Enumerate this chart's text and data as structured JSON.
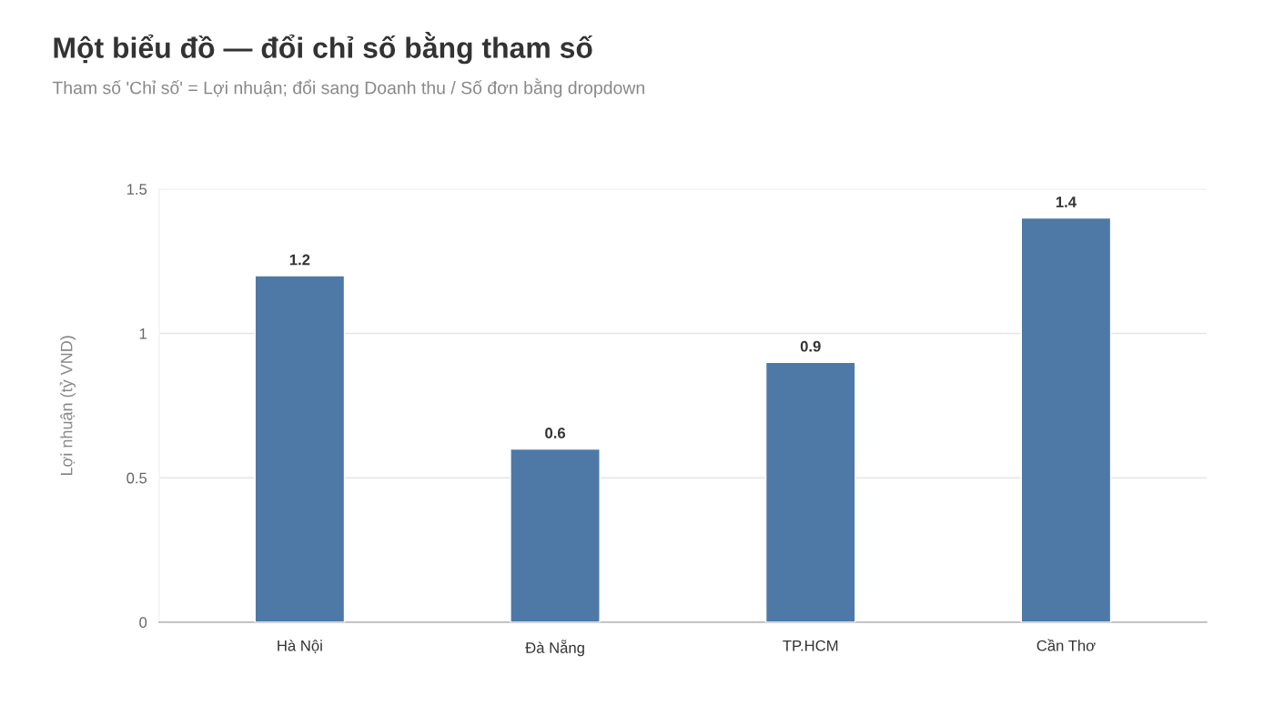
{
  "chart_data": {
    "type": "bar",
    "title": "Một biểu đồ — đổi chỉ số bằng tham số",
    "subtitle": "Tham số 'Chỉ số' = Lợi nhuận; đổi sang Doanh thu / Số đơn bằng dropdown",
    "ylabel": "Lợi nhuận (tỷ VND)",
    "categories": [
      "Hà Nội",
      "Đà Nẵng",
      "TP.HCM",
      "Cần Thơ"
    ],
    "values": [
      1.2,
      0.6,
      0.9,
      1.4
    ],
    "color": "#4e79a7",
    "ylim": [
      0,
      1.5
    ],
    "yticks": [
      0,
      0.5,
      1,
      1.5
    ],
    "grid": "y",
    "data_labels": true
  }
}
